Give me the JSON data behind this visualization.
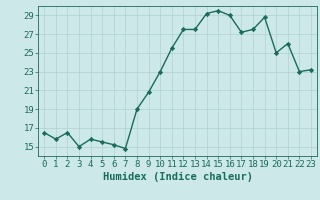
{
  "x": [
    0,
    1,
    2,
    3,
    4,
    5,
    6,
    7,
    8,
    9,
    10,
    11,
    12,
    13,
    14,
    15,
    16,
    17,
    18,
    19,
    20,
    21,
    22,
    23
  ],
  "y": [
    16.5,
    15.8,
    16.5,
    15.0,
    15.8,
    15.5,
    15.2,
    14.8,
    19.0,
    20.8,
    23.0,
    25.5,
    27.5,
    27.5,
    29.2,
    29.5,
    29.0,
    27.2,
    27.5,
    28.8,
    25.0,
    26.0,
    23.0,
    23.2
  ],
  "line_color": "#1a6b5a",
  "marker": "D",
  "marker_size": 2.2,
  "bg_color": "#cce8e8",
  "grid_color": "#b0d0d0",
  "xlabel": "Humidex (Indice chaleur)",
  "ylim": [
    14.0,
    30.0
  ],
  "yticks": [
    15,
    17,
    19,
    21,
    23,
    25,
    27,
    29
  ],
  "xlim": [
    -0.5,
    23.5
  ],
  "xticks": [
    0,
    1,
    2,
    3,
    4,
    5,
    6,
    7,
    8,
    9,
    10,
    11,
    12,
    13,
    14,
    15,
    16,
    17,
    18,
    19,
    20,
    21,
    22,
    23
  ],
  "xlabel_fontsize": 7.5,
  "tick_fontsize": 6.5,
  "line_width": 1.0
}
